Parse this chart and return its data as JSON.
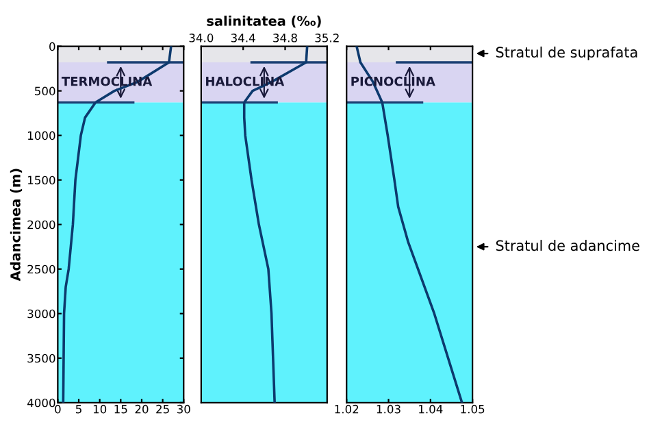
{
  "chart_data": [
    {
      "type": "line",
      "ylabel": "Adancimea (m)",
      "x": [
        27,
        26.5,
        19,
        13.5,
        9,
        6.5,
        5.5,
        4.2,
        3.6,
        2.6,
        1.9,
        1.5,
        1.3
      ],
      "series": [
        {
          "color": "#0d3a6e",
          "values": [
            0,
            180,
            400,
            500,
            630,
            800,
            1000,
            1500,
            2000,
            2500,
            2700,
            3000,
            4000
          ]
        }
      ],
      "xlim": [
        0,
        30
      ],
      "xticks": [
        0,
        5,
        10,
        15,
        20,
        25,
        30
      ],
      "ylim": [
        4000,
        0
      ],
      "yticks": [
        0,
        500,
        1000,
        1500,
        2000,
        2500,
        3000,
        3500,
        4000
      ],
      "bands": [
        {
          "axis": "y",
          "from": 0,
          "to": 180,
          "color": "#e6e6ea"
        },
        {
          "axis": "y",
          "from": 180,
          "to": 630,
          "color": "#d9d5f2",
          "label": "TERMOCLINA"
        },
        {
          "axis": "y",
          "from": 630,
          "to": 4000,
          "color": "#5ff2fd"
        }
      ],
      "ref_lines": [
        {
          "axis": "y",
          "value": 180,
          "color": "#1a3f73"
        },
        {
          "axis": "y",
          "value": 630,
          "color": "#1a3f73"
        }
      ],
      "grid": false,
      "legend": false
    },
    {
      "type": "line",
      "xlabel": "salinitatea (‰)",
      "x": [
        35.01,
        35.0,
        34.67,
        34.49,
        34.41,
        34.41,
        34.42,
        34.48,
        34.55,
        34.64,
        34.67,
        34.7
      ],
      "series": [
        {
          "color": "#0d3a6e",
          "values": [
            0,
            180,
            400,
            500,
            630,
            800,
            1000,
            1500,
            2000,
            2500,
            3000,
            4000
          ]
        }
      ],
      "xlim": [
        34.0,
        35.2
      ],
      "xticks": [
        {
          "value": 34.0,
          "label": "34.0"
        },
        34.4,
        34.8,
        35.2
      ],
      "ylim": [
        4000,
        0
      ],
      "tick_labels": "x",
      "bands": [
        {
          "axis": "y",
          "from": 0,
          "to": 180,
          "color": "#e6e6ea"
        },
        {
          "axis": "y",
          "from": 180,
          "to": 630,
          "color": "#d9d5f2",
          "label": "HALOCLINA"
        },
        {
          "axis": "y",
          "from": 630,
          "to": 4000,
          "color": "#5ff2fd"
        }
      ],
      "ref_lines": [
        {
          "axis": "y",
          "value": 180,
          "color": "#1a3f73"
        },
        {
          "axis": "y",
          "value": 630,
          "color": "#1a3f73"
        }
      ],
      "grid": false,
      "legend": false
    },
    {
      "type": "line",
      "x": [
        1.0224,
        1.0233,
        1.0263,
        1.0285,
        1.0298,
        1.0314,
        1.0323,
        1.0347,
        1.0409,
        1.0475
      ],
      "series": [
        {
          "color": "#0d3a6e",
          "values": [
            0,
            180,
            400,
            630,
            1000,
            1500,
            1800,
            2200,
            3000,
            4000
          ]
        }
      ],
      "xlim": [
        1.02,
        1.05
      ],
      "xticks": [
        1.02,
        1.03,
        1.04,
        1.05
      ],
      "ylim": [
        4000,
        0
      ],
      "tick_labels": "x",
      "bands": [
        {
          "axis": "y",
          "from": 0,
          "to": 180,
          "color": "#e6e6ea"
        },
        {
          "axis": "y",
          "from": 180,
          "to": 630,
          "color": "#d9d5f2",
          "label": "PICNOCLINA"
        },
        {
          "axis": "y",
          "from": 630,
          "to": 4000,
          "color": "#5ff2fd"
        }
      ],
      "ref_lines": [
        {
          "axis": "y",
          "value": 180,
          "color": "#1a3f73"
        },
        {
          "axis": "y",
          "value": 630,
          "color": "#1a3f73"
        }
      ],
      "annotations": [
        {
          "text": "Stratul de suprafata",
          "x": 1.05,
          "y": 80
        },
        {
          "text": "Stratul de adancime",
          "x": 1.05,
          "y": 2250
        }
      ],
      "grid": false,
      "legend": false
    }
  ]
}
